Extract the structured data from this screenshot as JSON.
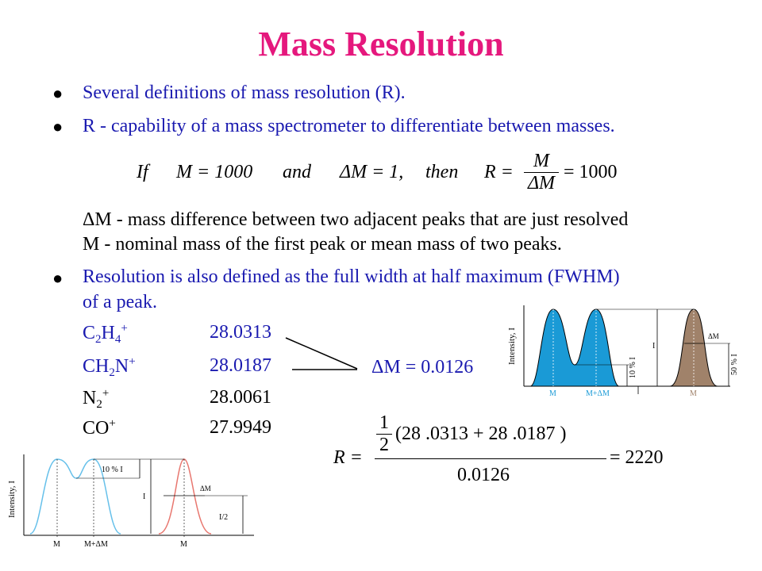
{
  "title": "Mass Resolution",
  "bullets": [
    "Several definitions of mass resolution (R).",
    "R - capability of a mass spectrometer to differentiate between masses.",
    "Resolution is also defined as the full width at half maximum (FWHM)",
    "of a peak."
  ],
  "equation1": {
    "if": "If",
    "m_expr": "M = 1000",
    "and": "and",
    "dm_expr": "ΔM = 1,",
    "then": "then",
    "r_lhs": "R =",
    "r_num": "M",
    "r_den": "ΔM",
    "r_rhs": "= 1000"
  },
  "definitions": [
    "ΔM - mass difference between two adjacent peaks that are just resolved",
    "M - nominal mass of the first peak or mean mass of two peaks."
  ],
  "ions": [
    {
      "base": "C",
      "sub1": "2",
      "mid": "H",
      "sub2": "4",
      "sup": "+",
      "mass": "28.0313"
    },
    {
      "base": "CH",
      "sub1": "2",
      "mid": "N",
      "sub2": "",
      "sup": "+",
      "mass": "28.0187"
    },
    {
      "base": "N",
      "sub1": "2",
      "mid": "",
      "sub2": "",
      "sup": "+",
      "mass": "28.0061"
    },
    {
      "base": "CO",
      "sub1": "",
      "mid": "",
      "sub2": "",
      "sup": "+",
      "mass": "27.9949"
    }
  ],
  "delta_m_label": "ΔM = 0.0126",
  "equation2": {
    "lhs": "R =",
    "half_num": "1",
    "half_den": "2",
    "sum": "(28 .0313  + 28 .0187 )",
    "den": "0.0126",
    "rhs": "= 2220"
  },
  "figure_right": {
    "y_axis": "Intensity, I",
    "ten_pct": "10 % I",
    "i_label": "I",
    "dm_label": "ΔM",
    "fifty_pct": "50 % I",
    "x_m": "M",
    "x_m_dm": "M+ΔM",
    "x_m2": "M",
    "blue_fill": "#1a9ad6",
    "brown_fill": "#a0826a"
  },
  "figure_left": {
    "y_axis": "Intensity, I",
    "ten_pct": "10 % I",
    "i_label": "I",
    "dm_label": "ΔM",
    "half_label": "I/2",
    "x_m": "M",
    "x_m_dm": "M+ΔM",
    "x_m2": "M",
    "blue_line": "#66c0ea",
    "red_line": "#e8776f"
  }
}
